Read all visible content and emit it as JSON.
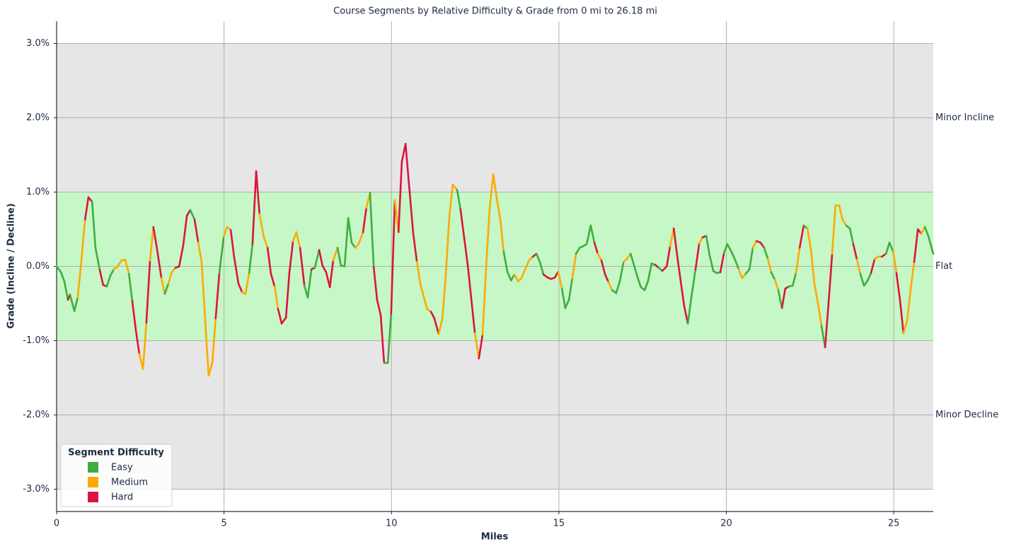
{
  "chart_data": {
    "type": "line",
    "title": "Course Segments by Relative Difficulty & Grade from 0 mi to 26.18 mi",
    "x_label": "Miles",
    "y_label": "Grade (Incline / Decline)",
    "xlim": [
      0,
      26.18
    ],
    "ylim": [
      -3.3,
      3.3
    ],
    "xticks": [
      0,
      5,
      10,
      15,
      20,
      25
    ],
    "yticks": [
      {
        "value": -3,
        "label": "-3.0%"
      },
      {
        "value": -2,
        "label": "-2.0%"
      },
      {
        "value": -1,
        "label": "-1.0%"
      },
      {
        "value": 0,
        "label": "0.0%"
      },
      {
        "value": 1,
        "label": "1.0%"
      },
      {
        "value": 2,
        "label": "2.0%"
      },
      {
        "value": 3,
        "label": "3.0%"
      }
    ],
    "grid": true,
    "bands": [
      {
        "from": -3,
        "to": 3,
        "color": "#e6e6e6"
      },
      {
        "from": -1,
        "to": 1,
        "color": "#c6f7c6"
      }
    ],
    "annotations": [
      {
        "y": 2,
        "text": "Minor Incline"
      },
      {
        "y": 0,
        "text": "Flat"
      },
      {
        "y": -2,
        "text": "Minor Decline"
      }
    ],
    "legend": {
      "title": "Segment Difficulty",
      "position": "lower left",
      "entries": [
        {
          "name": "Easy",
          "color": "#3dae3d"
        },
        {
          "name": "Medium",
          "color": "#fbab00"
        },
        {
          "name": "Hard",
          "color": "#dc143c"
        }
      ]
    },
    "x": [
      0,
      0.13,
      0.23,
      0.34,
      0.4,
      0.53,
      0.63,
      0.74,
      0.85,
      0.95,
      1.06,
      1.16,
      1.29,
      1.39,
      1.5,
      1.61,
      1.71,
      1.82,
      1.94,
      2.05,
      2.16,
      2.26,
      2.37,
      2.47,
      2.58,
      2.68,
      2.79,
      2.89,
      3.0,
      3.13,
      3.23,
      3.34,
      3.44,
      3.55,
      3.66,
      3.78,
      3.89,
      3.99,
      4.12,
      4.23,
      4.33,
      4.44,
      4.54,
      4.65,
      4.75,
      4.86,
      4.99,
      5.09,
      5.2,
      5.3,
      5.43,
      5.54,
      5.64,
      5.75,
      5.85,
      5.96,
      6.06,
      6.19,
      6.3,
      6.4,
      6.51,
      6.61,
      6.72,
      6.85,
      6.95,
      7.06,
      7.16,
      7.27,
      7.4,
      7.5,
      7.61,
      7.71,
      7.84,
      7.94,
      8.05,
      8.16,
      8.26,
      8.39,
      8.49,
      8.6,
      8.71,
      8.81,
      8.92,
      9.02,
      9.15,
      9.25,
      9.36,
      9.47,
      9.57,
      9.68,
      9.78,
      9.89,
      9.99,
      10.1,
      10.21,
      10.31,
      10.42,
      10.52,
      10.65,
      10.76,
      10.86,
      10.97,
      11.07,
      11.18,
      11.28,
      11.41,
      11.52,
      11.62,
      11.73,
      11.83,
      11.96,
      12.06,
      12.17,
      12.28,
      12.38,
      12.49,
      12.61,
      12.72,
      12.83,
      12.93,
      13.04,
      13.14,
      13.25,
      13.35,
      13.46,
      13.57,
      13.67,
      13.78,
      13.88,
      14.01,
      14.11,
      14.22,
      14.33,
      14.43,
      14.54,
      14.66,
      14.77,
      14.88,
      14.98,
      15.09,
      15.19,
      15.3,
      15.4,
      15.51,
      15.62,
      15.72,
      15.83,
      15.95,
      16.06,
      16.16,
      16.27,
      16.38,
      16.48,
      16.59,
      16.71,
      16.82,
      16.93,
      17.03,
      17.14,
      17.24,
      17.35,
      17.45,
      17.56,
      17.66,
      17.77,
      17.88,
      17.98,
      18.09,
      18.22,
      18.32,
      18.43,
      18.53,
      18.64,
      18.74,
      18.85,
      18.97,
      19.08,
      19.19,
      19.29,
      19.4,
      19.5,
      19.61,
      19.71,
      19.82,
      19.93,
      20.03,
      20.16,
      20.26,
      20.37,
      20.47,
      20.58,
      20.69,
      20.79,
      20.9,
      21.02,
      21.13,
      21.24,
      21.34,
      21.45,
      21.55,
      21.66,
      21.76,
      21.87,
      21.98,
      22.08,
      22.19,
      22.31,
      22.42,
      22.52,
      22.63,
      22.74,
      22.84,
      22.95,
      23.05,
      23.16,
      23.26,
      23.37,
      23.47,
      23.58,
      23.69,
      23.79,
      23.9,
      24.0,
      24.11,
      24.22,
      24.32,
      24.43,
      24.53,
      24.64,
      24.77,
      24.87,
      24.98,
      25.08,
      25.19,
      25.29,
      25.4,
      25.5,
      25.61,
      25.72,
      25.82,
      25.93,
      26.03,
      26.18
    ],
    "y": [
      0.0,
      -0.08,
      -0.2,
      -0.45,
      -0.38,
      -0.6,
      -0.42,
      0.08,
      0.63,
      0.93,
      0.87,
      0.25,
      -0.05,
      -0.25,
      -0.27,
      -0.12,
      -0.04,
      0.0,
      0.08,
      0.09,
      -0.1,
      -0.47,
      -0.87,
      -1.18,
      -1.38,
      -0.76,
      0.08,
      0.53,
      0.23,
      -0.16,
      -0.37,
      -0.23,
      -0.08,
      -0.02,
      0.0,
      0.28,
      0.68,
      0.76,
      0.63,
      0.32,
      0.06,
      -0.75,
      -1.47,
      -1.3,
      -0.7,
      -0.09,
      0.4,
      0.53,
      0.49,
      0.13,
      -0.23,
      -0.35,
      -0.37,
      -0.09,
      0.3,
      1.28,
      0.7,
      0.39,
      0.25,
      -0.1,
      -0.27,
      -0.57,
      -0.77,
      -0.69,
      -0.09,
      0.34,
      0.46,
      0.25,
      -0.26,
      -0.42,
      -0.04,
      -0.02,
      0.22,
      0.01,
      -0.08,
      -0.28,
      0.08,
      0.25,
      0.01,
      0.0,
      0.65,
      0.32,
      0.25,
      0.3,
      0.46,
      0.79,
      0.99,
      -0.01,
      -0.45,
      -0.66,
      -1.3,
      -1.3,
      -0.64,
      0.89,
      0.46,
      1.41,
      1.65,
      1.12,
      0.44,
      0.06,
      -0.23,
      -0.42,
      -0.58,
      -0.61,
      -0.7,
      -0.91,
      -0.7,
      -0.13,
      0.68,
      1.1,
      1.03,
      0.77,
      0.39,
      0.01,
      -0.42,
      -0.9,
      -1.24,
      -0.92,
      0.01,
      0.77,
      1.24,
      0.93,
      0.63,
      0.2,
      -0.07,
      -0.19,
      -0.11,
      -0.2,
      -0.16,
      -0.02,
      0.08,
      0.13,
      0.17,
      0.06,
      -0.11,
      -0.15,
      -0.17,
      -0.15,
      -0.07,
      -0.3,
      -0.56,
      -0.45,
      -0.16,
      0.17,
      0.25,
      0.27,
      0.3,
      0.55,
      0.32,
      0.17,
      0.08,
      -0.11,
      -0.21,
      -0.32,
      -0.36,
      -0.2,
      0.06,
      0.1,
      0.17,
      0.02,
      -0.15,
      -0.28,
      -0.32,
      -0.2,
      0.04,
      0.02,
      -0.02,
      -0.06,
      0.0,
      0.27,
      0.51,
      0.15,
      -0.21,
      -0.53,
      -0.77,
      -0.37,
      -0.04,
      0.31,
      0.39,
      0.41,
      0.15,
      -0.06,
      -0.09,
      -0.08,
      0.18,
      0.3,
      0.19,
      0.09,
      -0.04,
      -0.16,
      -0.1,
      -0.04,
      0.25,
      0.34,
      0.32,
      0.25,
      0.1,
      -0.08,
      -0.18,
      -0.32,
      -0.56,
      -0.3,
      -0.27,
      -0.26,
      -0.09,
      0.25,
      0.55,
      0.51,
      0.25,
      -0.23,
      -0.51,
      -0.8,
      -1.09,
      -0.51,
      0.17,
      0.82,
      0.82,
      0.63,
      0.55,
      0.51,
      0.3,
      0.09,
      -0.1,
      -0.26,
      -0.19,
      -0.09,
      0.1,
      0.13,
      0.13,
      0.17,
      0.32,
      0.2,
      -0.09,
      -0.47,
      -0.9,
      -0.73,
      -0.32,
      0.06,
      0.5,
      0.44,
      0.53,
      0.41,
      0.17
    ],
    "segment_level": [
      0,
      0,
      0,
      2,
      0,
      0,
      1,
      1,
      2,
      2,
      0,
      0,
      2,
      2,
      0,
      0,
      1,
      1,
      1,
      1,
      0,
      2,
      2,
      1,
      1,
      2,
      1,
      2,
      2,
      1,
      0,
      1,
      1,
      2,
      2,
      2,
      2,
      0,
      2,
      1,
      1,
      1,
      1,
      1,
      2,
      0,
      1,
      1,
      2,
      2,
      2,
      1,
      1,
      0,
      2,
      2,
      1,
      1,
      2,
      2,
      1,
      2,
      2,
      2,
      2,
      1,
      1,
      2,
      0,
      0,
      2,
      0,
      2,
      2,
      2,
      2,
      1,
      0,
      0,
      0,
      0,
      0,
      1,
      1,
      2,
      1,
      0,
      2,
      2,
      2,
      0,
      0,
      2,
      1,
      2,
      2,
      2,
      2,
      2,
      1,
      1,
      1,
      1,
      2,
      2,
      1,
      1,
      1,
      1,
      1,
      0,
      2,
      2,
      2,
      2,
      1,
      2,
      1,
      1,
      1,
      1,
      1,
      1,
      0,
      0,
      0,
      1,
      1,
      1,
      1,
      1,
      2,
      0,
      0,
      2,
      2,
      2,
      2,
      1,
      0,
      0,
      0,
      1,
      0,
      0,
      0,
      0,
      0,
      2,
      1,
      2,
      2,
      1,
      0,
      0,
      0,
      1,
      1,
      0,
      0,
      0,
      0,
      0,
      0,
      0,
      2,
      0,
      2,
      2,
      1,
      2,
      2,
      2,
      2,
      0,
      0,
      2,
      1,
      2,
      0,
      0,
      0,
      0,
      2,
      0,
      0,
      0,
      0,
      1,
      1,
      0,
      0,
      1,
      2,
      2,
      0,
      1,
      0,
      1,
      0,
      2,
      2,
      0,
      0,
      1,
      2,
      0,
      1,
      1,
      1,
      1,
      0,
      2,
      2,
      1,
      1,
      1,
      1,
      0,
      0,
      2,
      1,
      0,
      0,
      0,
      2,
      1,
      1,
      2,
      0,
      0,
      1,
      2,
      2,
      1,
      1,
      1,
      2,
      2,
      1,
      0,
      0
    ]
  }
}
